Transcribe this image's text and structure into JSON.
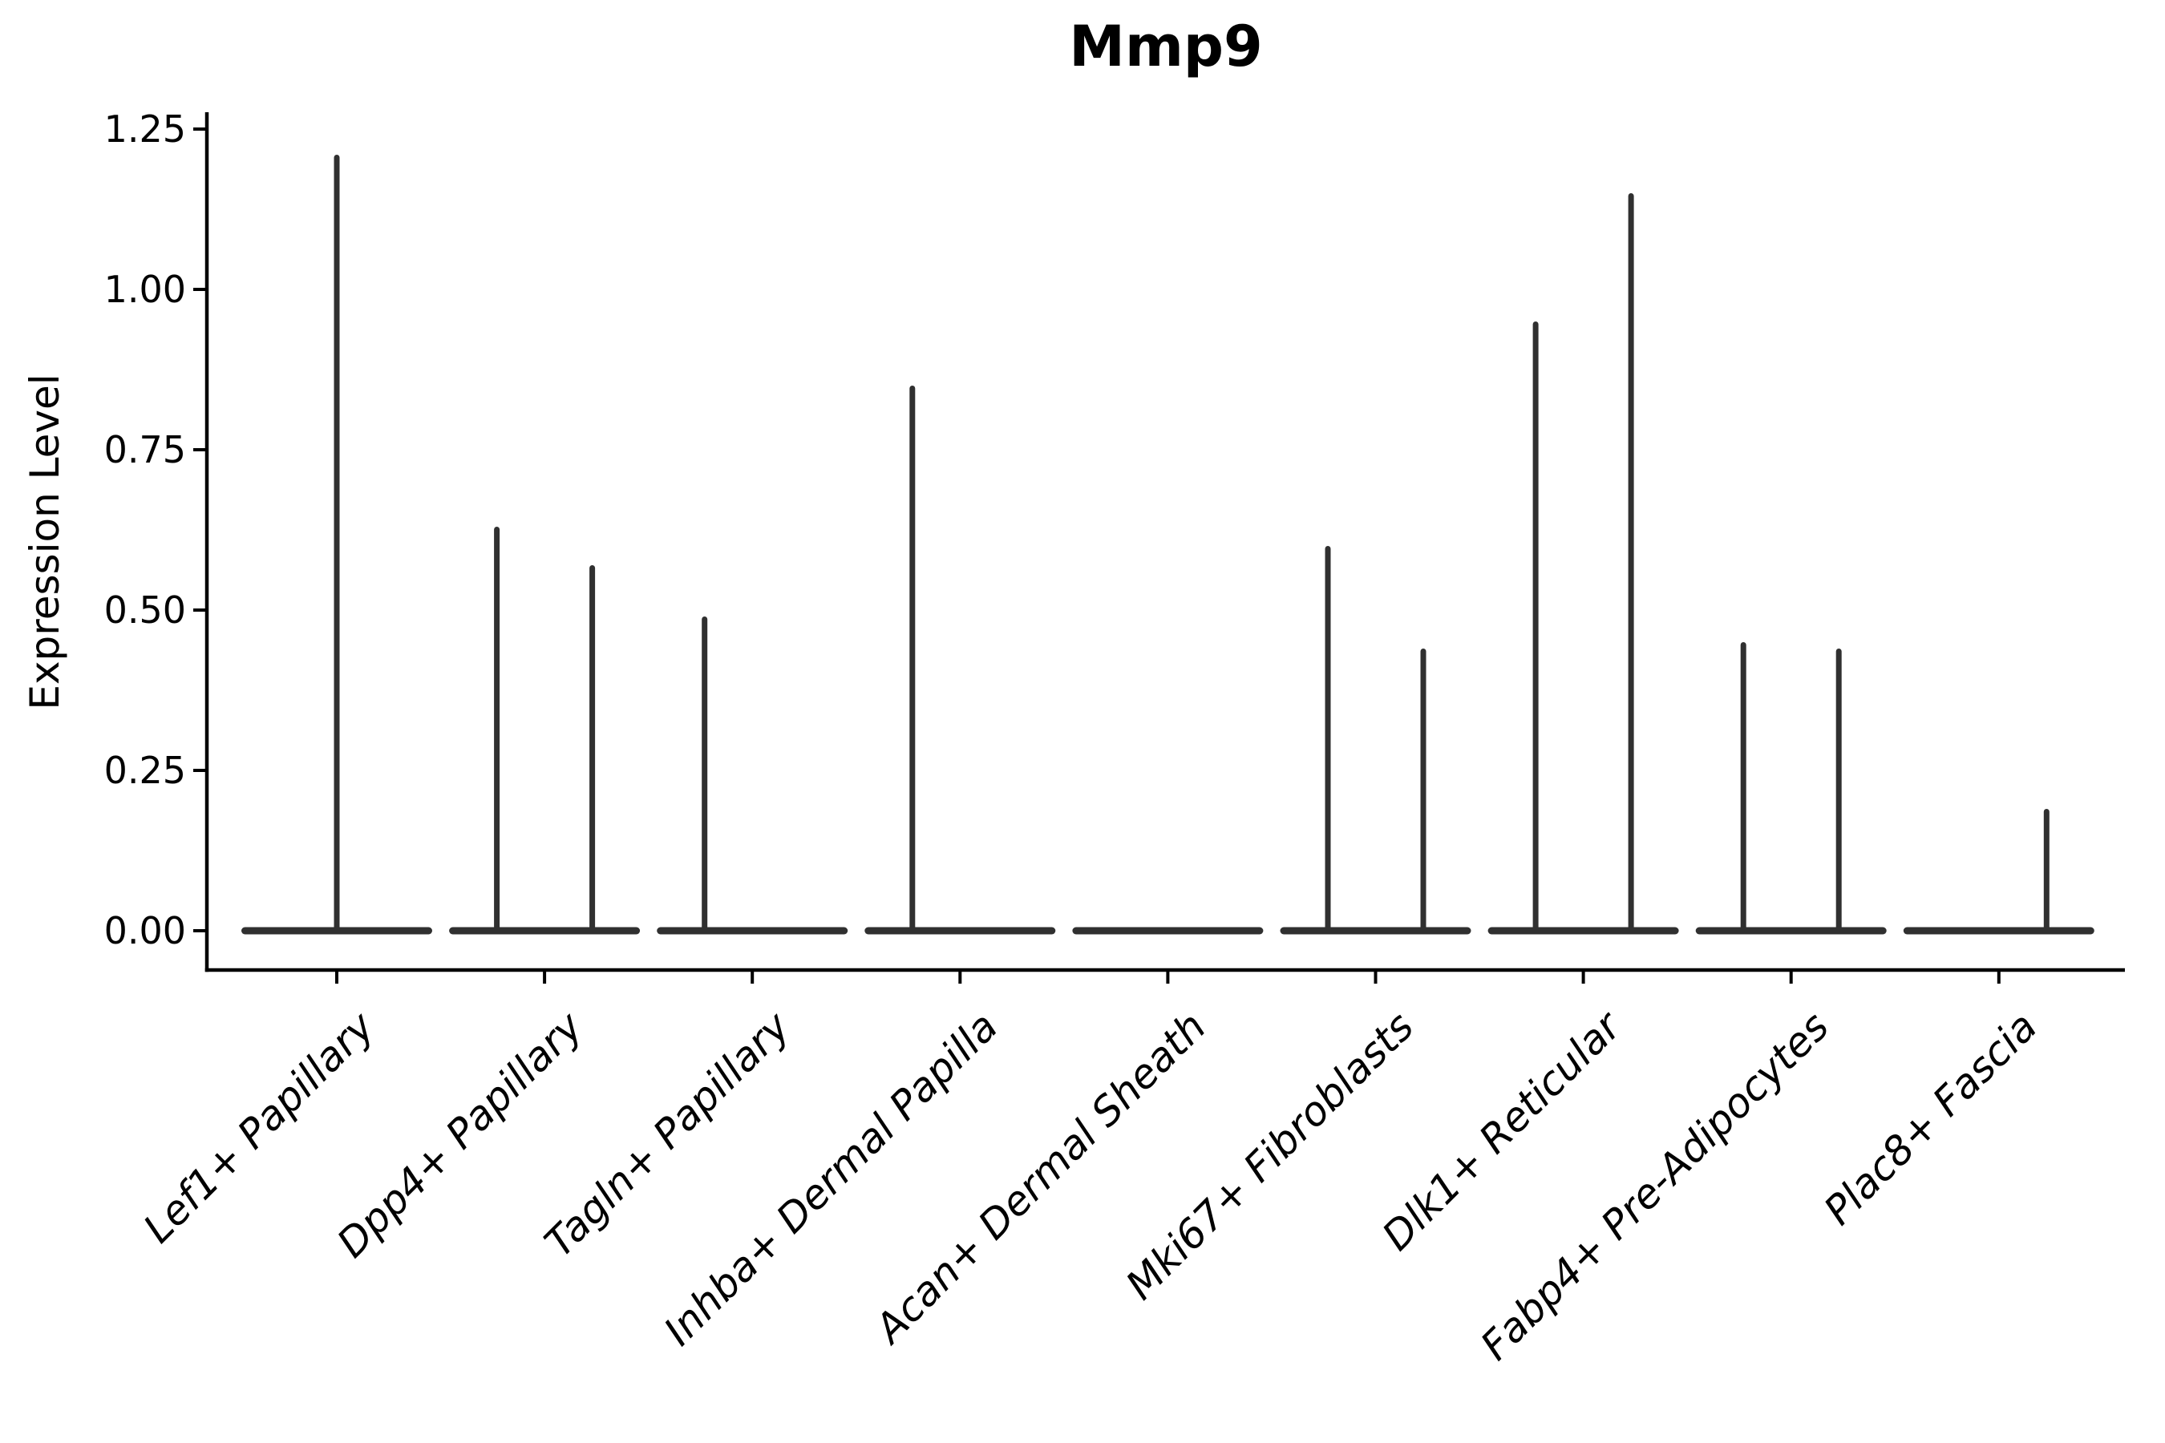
{
  "figure": {
    "title": "Mmp9",
    "y_axis": {
      "label": "Expression Level",
      "tick_labels": [
        "0.00",
        "0.25",
        "0.50",
        "0.75",
        "1.00",
        "1.25"
      ],
      "tick_values": [
        0,
        0.25,
        0.5,
        0.75,
        1.0,
        1.25
      ]
    },
    "x_axis": {
      "categories": [
        "Lef1+ Papillary",
        "Dpp4+ Papillary",
        "Tagln+ Papillary",
        "Inhba+ Dermal Papilla",
        "Acan+ Dermal Sheath",
        "Mki67+ Fibroblasts",
        "Dlk1+ Reticular",
        "Fabp4+ Pre-Adipocytes",
        "Plac8+ Fascia"
      ]
    },
    "colors": {
      "violin": "#303030",
      "axis": "#000000",
      "text": "#000000",
      "background": "#ffffff"
    }
  },
  "chart_data": {
    "type": "violin",
    "title": "Mmp9",
    "xlabel": "",
    "ylabel": "Expression Level",
    "ylim": [
      0,
      1.25
    ],
    "yticks": [
      0,
      0.25,
      0.5,
      0.75,
      1.0,
      1.25
    ],
    "grid": "off",
    "legend": "none",
    "shape_note": "each violin is flattened at 0 with a thin vertical spike up to its maximum expression value",
    "categories": [
      "Lef1+ Papillary",
      "Dpp4+ Papillary",
      "Tagln+ Papillary",
      "Inhba+ Dermal Papilla",
      "Acan+ Dermal Sheath",
      "Mki67+ Fibroblasts",
      "Dlk1+ Reticular",
      "Fabp4+ Pre-Adipocytes",
      "Plac8+ Fascia"
    ],
    "series": [
      {
        "category": "Lef1+ Papillary",
        "violins": [
          {
            "position": "center",
            "max": 1.21
          }
        ]
      },
      {
        "category": "Dpp4+ Papillary",
        "violins": [
          {
            "position": "left",
            "max": 0.63
          },
          {
            "position": "right",
            "max": 0.57
          }
        ]
      },
      {
        "category": "Tagln+ Papillary",
        "violins": [
          {
            "position": "left",
            "max": 0.49
          },
          {
            "position": "right",
            "max": 0
          }
        ]
      },
      {
        "category": "Inhba+ Dermal Papilla",
        "violins": [
          {
            "position": "left",
            "max": 0.85
          },
          {
            "position": "right",
            "max": 0
          }
        ]
      },
      {
        "category": "Acan+ Dermal Sheath",
        "violins": [
          {
            "position": "center",
            "max": 0
          }
        ]
      },
      {
        "category": "Mki67+ Fibroblasts",
        "violins": [
          {
            "position": "left",
            "max": 0.6
          },
          {
            "position": "right",
            "max": 0.44
          }
        ]
      },
      {
        "category": "Dlk1+ Reticular",
        "violins": [
          {
            "position": "left",
            "max": 0.95
          },
          {
            "position": "right",
            "max": 1.15
          }
        ]
      },
      {
        "category": "Fabp4+ Pre-Adipocytes",
        "violins": [
          {
            "position": "left",
            "max": 0.45
          },
          {
            "position": "right",
            "max": 0.44
          }
        ]
      },
      {
        "category": "Plac8+ Fascia",
        "violins": [
          {
            "position": "left",
            "max": 0
          },
          {
            "position": "right",
            "max": 0.19
          }
        ]
      }
    ]
  }
}
